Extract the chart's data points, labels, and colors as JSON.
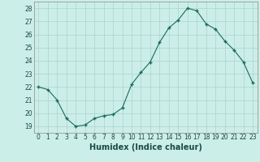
{
  "x": [
    0,
    1,
    2,
    3,
    4,
    5,
    6,
    7,
    8,
    9,
    10,
    11,
    12,
    13,
    14,
    15,
    16,
    17,
    18,
    19,
    20,
    21,
    22,
    23
  ],
  "y": [
    22.0,
    21.8,
    21.0,
    19.6,
    19.0,
    19.1,
    19.6,
    19.8,
    19.9,
    20.4,
    22.2,
    23.1,
    23.9,
    25.4,
    26.5,
    27.1,
    28.0,
    27.8,
    26.8,
    26.4,
    25.5,
    24.8,
    23.9,
    22.3
  ],
  "xlabel": "Humidex (Indice chaleur)",
  "xlim": [
    -0.5,
    23.5
  ],
  "ylim": [
    18.5,
    28.5
  ],
  "yticks": [
    19,
    20,
    21,
    22,
    23,
    24,
    25,
    26,
    27,
    28
  ],
  "xticks": [
    0,
    1,
    2,
    3,
    4,
    5,
    6,
    7,
    8,
    9,
    10,
    11,
    12,
    13,
    14,
    15,
    16,
    17,
    18,
    19,
    20,
    21,
    22,
    23
  ],
  "line_color": "#1a6b5a",
  "marker": "+",
  "bg_color": "#cceee8",
  "grid_color": "#aad4cc",
  "label_fontsize": 7,
  "tick_fontsize": 5.5
}
